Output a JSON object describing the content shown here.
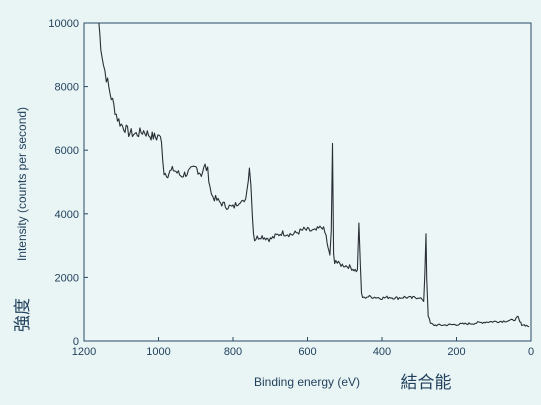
{
  "chart_data": {
    "type": "line",
    "title": "",
    "xlabel": "Binding energy (eV)",
    "ylabel": "Intensity (counts per second)",
    "xlabel_ja": "結合能",
    "ylabel_ja": "強度",
    "x_reversed": true,
    "xlim": [
      1200,
      0
    ],
    "ylim": [
      0,
      10000
    ],
    "x_ticks": [
      "1200",
      "1000",
      "800",
      "600",
      "400",
      "200",
      "0"
    ],
    "y_ticks": [
      "0",
      "2000",
      "4000",
      "6000",
      "8000",
      "10000"
    ],
    "grid": false,
    "legend": "none",
    "line_color": "#2a2f36",
    "series": [
      {
        "x": [
          1160,
          1155,
          1148,
          1140,
          1130,
          1120,
          1110,
          1100,
          1090,
          1080,
          1060,
          1040,
          1020,
          1005,
          998,
          992,
          985,
          975,
          960,
          940,
          920,
          900,
          885,
          875,
          868,
          862,
          858,
          850,
          840,
          820,
          800,
          780,
          770,
          762,
          756,
          752,
          748,
          745,
          742,
          735,
          725,
          700,
          670,
          640,
          610,
          580,
          560,
          550,
          545,
          540,
          536,
          533,
          530,
          527,
          524,
          520,
          510,
          490,
          475,
          466,
          462,
          458,
          455,
          452,
          448,
          440,
          420,
          400,
          380,
          360,
          340,
          320,
          300,
          292,
          288,
          285,
          282,
          280,
          276,
          270,
          260,
          240,
          200,
          160,
          120,
          80,
          50,
          40,
          35,
          30,
          25,
          15,
          5
        ],
        "y": [
          10000,
          9300,
          8700,
          8300,
          7800,
          7400,
          7000,
          6800,
          6700,
          6550,
          6500,
          6600,
          6450,
          6400,
          6500,
          6200,
          5300,
          5250,
          5400,
          5200,
          5300,
          5450,
          5250,
          5500,
          5350,
          4900,
          4600,
          4500,
          4400,
          4250,
          4200,
          4450,
          4300,
          4800,
          5500,
          4900,
          4000,
          3400,
          3200,
          3250,
          3300,
          3200,
          3400,
          3350,
          3500,
          3450,
          3600,
          3300,
          2900,
          2700,
          3500,
          6100,
          2700,
          2500,
          2550,
          2450,
          2400,
          2350,
          2250,
          2200,
          3750,
          2300,
          1500,
          1380,
          1350,
          1400,
          1380,
          1350,
          1380,
          1350,
          1380,
          1350,
          1380,
          1300,
          1200,
          2100,
          3400,
          2000,
          800,
          550,
          500,
          500,
          520,
          550,
          600,
          620,
          650,
          700,
          750,
          600,
          520,
          500,
          450
        ]
      }
    ]
  }
}
